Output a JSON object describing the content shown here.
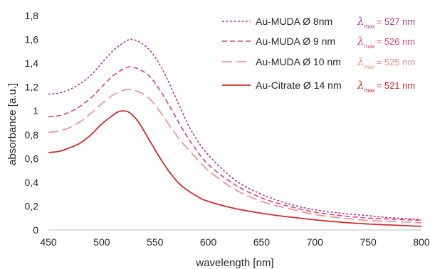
{
  "chart_data": {
    "type": "line",
    "xlabel": "wavelength [nm]",
    "ylabel": "absorbance [a.u.]",
    "xlim": [
      450,
      800
    ],
    "ylim": [
      0,
      1.8
    ],
    "x_ticks": [
      "450",
      "500",
      "550",
      "600",
      "650",
      "700",
      "750",
      "800"
    ],
    "x_tick_values": [
      450,
      500,
      550,
      600,
      650,
      700,
      750,
      800
    ],
    "y_ticks": [
      "0",
      "0,2",
      "0,4",
      "0,6",
      "0,8",
      "1",
      "1,2",
      "1,4",
      "1,6",
      "1,8"
    ],
    "y_tick_values": [
      0,
      0.2,
      0.4,
      0.6,
      0.8,
      1.0,
      1.2,
      1.4,
      1.6,
      1.8
    ],
    "grid": false,
    "legend_position": "top-right",
    "lambda_symbol": "λ",
    "lambda_sub": "max",
    "series": [
      {
        "name": "Au-MUDA Ø 8nm",
        "lambda_value": "= 527 nm",
        "color": "#b03a8f",
        "dash": "short-dash",
        "x": [
          450,
          460,
          470,
          480,
          490,
          500,
          510,
          520,
          527,
          535,
          545,
          555,
          565,
          575,
          585,
          600,
          625,
          650,
          675,
          700,
          725,
          750,
          775,
          800
        ],
        "y": [
          1.14,
          1.15,
          1.18,
          1.23,
          1.3,
          1.4,
          1.5,
          1.57,
          1.6,
          1.58,
          1.51,
          1.38,
          1.2,
          1.0,
          0.82,
          0.63,
          0.42,
          0.3,
          0.22,
          0.17,
          0.14,
          0.12,
          0.1,
          0.09
        ]
      },
      {
        "name": "Au-MUDA Ø  9 nm",
        "lambda_value": "= 526 nm",
        "color": "#e0407a",
        "dash": "dash",
        "x": [
          450,
          460,
          470,
          480,
          490,
          500,
          510,
          520,
          526,
          535,
          545,
          555,
          565,
          575,
          585,
          600,
          625,
          650,
          675,
          700,
          725,
          750,
          775,
          800
        ],
        "y": [
          0.95,
          0.96,
          0.99,
          1.04,
          1.11,
          1.2,
          1.29,
          1.35,
          1.37,
          1.35,
          1.29,
          1.17,
          1.02,
          0.86,
          0.72,
          0.55,
          0.38,
          0.27,
          0.2,
          0.15,
          0.12,
          0.1,
          0.09,
          0.08
        ]
      },
      {
        "name": "Au-MUDA Ø 10 nm",
        "lambda_value": "= 525 nm",
        "color": "#f08a8a",
        "dash": "long-dash",
        "x": [
          450,
          460,
          470,
          480,
          490,
          500,
          510,
          520,
          525,
          535,
          545,
          555,
          565,
          575,
          585,
          600,
          625,
          650,
          675,
          700,
          725,
          750,
          775,
          800
        ],
        "y": [
          0.82,
          0.83,
          0.86,
          0.91,
          0.98,
          1.06,
          1.13,
          1.17,
          1.18,
          1.16,
          1.1,
          0.99,
          0.86,
          0.74,
          0.64,
          0.5,
          0.34,
          0.24,
          0.18,
          0.13,
          0.1,
          0.08,
          0.07,
          0.06
        ]
      },
      {
        "name": "Au-Citrate Ø 14 nm",
        "lambda_value": "= 521 nm",
        "color": "#d42a2a",
        "dash": "solid",
        "x": [
          450,
          460,
          470,
          480,
          490,
          500,
          510,
          515,
          521,
          527,
          535,
          545,
          555,
          565,
          575,
          590,
          600,
          625,
          650,
          675,
          700,
          725,
          750,
          775,
          800
        ],
        "y": [
          0.65,
          0.66,
          0.69,
          0.73,
          0.8,
          0.89,
          0.96,
          0.99,
          1.0,
          0.98,
          0.9,
          0.75,
          0.6,
          0.47,
          0.37,
          0.28,
          0.24,
          0.18,
          0.14,
          0.11,
          0.085,
          0.065,
          0.05,
          0.04,
          0.03
        ]
      }
    ]
  }
}
